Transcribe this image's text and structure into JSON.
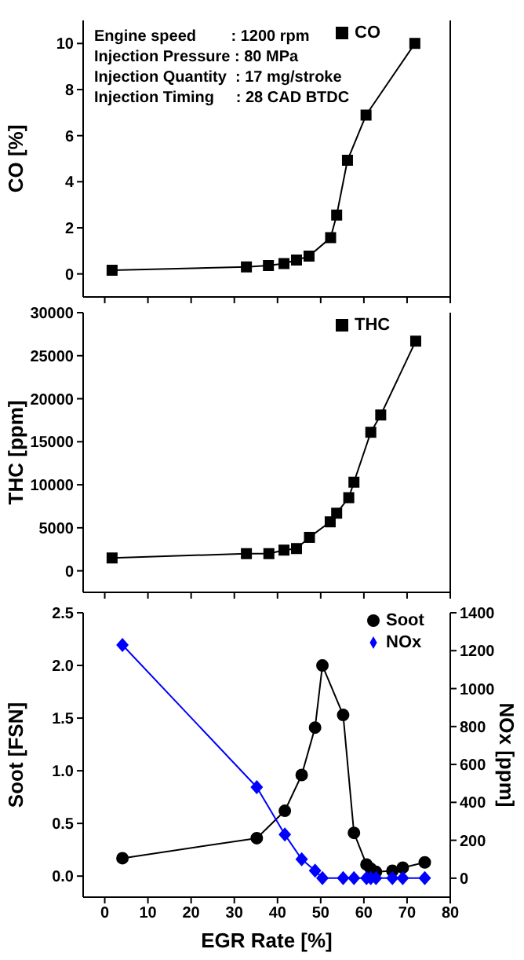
{
  "chart_data": [
    {
      "type": "line",
      "ylabel": "CO [%]",
      "xlim": [
        -5,
        80
      ],
      "xticks": [
        0,
        10,
        20,
        30,
        40,
        50,
        60,
        70,
        80
      ],
      "ylim": [
        -1,
        11
      ],
      "yticks": [
        0,
        2,
        4,
        6,
        8,
        10
      ],
      "tick_labels": "y",
      "legend": "top right",
      "marker": "square",
      "annotations": [
        "Engine speed        : 1200 rpm",
        "Injection Pressure : 80 MPa",
        "Injection Quantity  : 17 mg/stroke",
        "Injection Timing     : 28 CAD BTDC"
      ],
      "series": [
        {
          "name": "CO",
          "color": "#000000",
          "x": [
            1.7,
            32.8,
            37.9,
            41.5,
            44.4,
            47.3,
            52.3,
            53.7,
            56.2,
            60.5,
            71.8
          ],
          "values": [
            0.16,
            0.3,
            0.36,
            0.45,
            0.6,
            0.77,
            1.57,
            2.55,
            4.93,
            6.89,
            10
          ]
        }
      ]
    },
    {
      "type": "line",
      "ylabel": "THC [ppm]",
      "xlim": [
        -5,
        80
      ],
      "xticks": [
        0,
        10,
        20,
        30,
        40,
        50,
        60,
        70,
        80
      ],
      "ylim": [
        -2500,
        30000
      ],
      "yticks": [
        0,
        5000,
        10000,
        15000,
        20000,
        25000,
        30000
      ],
      "tick_labels": "y",
      "legend": "top right",
      "marker": "square",
      "series": [
        {
          "name": "THC",
          "color": "#000000",
          "x": [
            1.7,
            32.8,
            38.0,
            41.5,
            44.4,
            47.4,
            52.2,
            53.7,
            56.5,
            57.7,
            61.6,
            63.9,
            72.0
          ],
          "values": [
            1500,
            2000,
            2000,
            2400,
            2600,
            3900,
            5700,
            6700,
            8500,
            10300,
            16100,
            18100,
            26700
          ]
        }
      ]
    },
    {
      "type": "line",
      "xlabel": "EGR Rate [%]",
      "ylabel": "Soot [FSN]",
      "y2label": "NOx [ppm]",
      "xlim": [
        -5,
        80
      ],
      "xticks": [
        0,
        10,
        20,
        30,
        40,
        50,
        60,
        70,
        80
      ],
      "ylim": [
        -0.2,
        2.5
      ],
      "yticks": [
        {
          "value": 0,
          "label": "0.0"
        },
        0.5,
        {
          "value": 1,
          "label": "1.0"
        },
        1.5,
        {
          "value": 2,
          "label": "2.0"
        },
        2.5
      ],
      "y2lim": [
        -100,
        1400
      ],
      "y2ticks": [
        0,
        200,
        400,
        600,
        800,
        1000,
        1200,
        1400
      ],
      "legend": "top right",
      "series": [
        {
          "name": "Soot",
          "color": "#000000",
          "marker": "circle",
          "x": [
            4.1,
            35.2,
            41.7,
            45.6,
            48.7,
            50.4,
            55.2,
            57.7,
            60.6,
            61.6,
            62.8,
            66.6,
            69,
            74.1
          ],
          "values": [
            0.17,
            0.36,
            0.62,
            0.96,
            1.41,
            2.0,
            1.53,
            0.41,
            0.11,
            0.07,
            0.04,
            0.05,
            0.08,
            0.13
          ]
        },
        {
          "name": "NOx",
          "color": "#0000ff",
          "marker": "diamond",
          "axis": "y2",
          "x": [
            4.1,
            35.2,
            41.7,
            45.6,
            48.7,
            50.4,
            55.2,
            57.7,
            60.6,
            61.6,
            62.8,
            66.6,
            69,
            74.1
          ],
          "values": [
            1230,
            480,
            230,
            100,
            40,
            0,
            0,
            0,
            0,
            0,
            0,
            0,
            0,
            0
          ]
        }
      ]
    }
  ]
}
